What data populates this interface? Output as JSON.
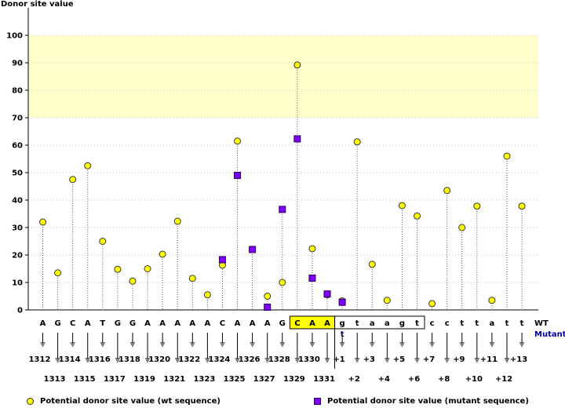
{
  "chart_data": {
    "type": "scatter",
    "ylabel": "Donor site value",
    "ylim": [
      0,
      100
    ],
    "yticks": [
      0,
      10,
      20,
      30,
      40,
      50,
      60,
      70,
      80,
      90,
      100
    ],
    "highlight_band": [
      70,
      100
    ],
    "bases_wt": [
      "A",
      "G",
      "C",
      "A",
      "T",
      "G",
      "G",
      "A",
      "A",
      "A",
      "A",
      "A",
      "C",
      "A",
      "A",
      "A",
      "G",
      "C",
      "A",
      "A",
      "g",
      "t",
      "a",
      "a",
      "g",
      "t",
      "c",
      "c",
      "t",
      "t",
      "a",
      "t",
      "t"
    ],
    "bases_mutant": [
      "",
      "",
      "",
      "",
      "",
      "",
      "",
      "",
      "",
      "",
      "",
      "",
      "",
      "",
      "",
      "",
      "",
      "",
      "",
      "",
      "t",
      "",
      "",
      "",
      "",
      "",
      "",
      "",
      "",
      "",
      "",
      "",
      ""
    ],
    "positions": [
      "1312",
      "1313",
      "1314",
      "1315",
      "1316",
      "1317",
      "1318",
      "1319",
      "1320",
      "1321",
      "1322",
      "1323",
      "1324",
      "1325",
      "1326",
      "1327",
      "1328",
      "1329",
      "1330",
      "1331",
      "+1",
      "+2",
      "+3",
      "+4",
      "+5",
      "+6",
      "+7",
      "+8",
      "+9",
      "+10",
      "+11",
      "+12",
      "+13"
    ],
    "row_labels": {
      "wt": "WT",
      "mutant": "Mutant"
    },
    "series": [
      {
        "name": "Potential donor site value (wt sequence)",
        "marker": "circle",
        "color": "#ffff00",
        "values": [
          32,
          13.5,
          47.5,
          52.5,
          25,
          14.8,
          10.5,
          15,
          20.3,
          32.3,
          11.5,
          5.5,
          16.3,
          61.5,
          22,
          5,
          10,
          89.2,
          22.3,
          5.5,
          3.3,
          61.2,
          16.6,
          3.5,
          38,
          34.2,
          2.3,
          43.5,
          30,
          37.8,
          3.5,
          56,
          37.8
        ]
      },
      {
        "name": "Potential donor site value (mutant sequence)",
        "marker": "square",
        "color": "#8000ff",
        "values": [
          null,
          null,
          null,
          null,
          null,
          null,
          null,
          null,
          null,
          null,
          null,
          null,
          18.3,
          49,
          22,
          1,
          36.6,
          62.3,
          11.6,
          5.8,
          2.8,
          null,
          null,
          null,
          null,
          null,
          null,
          null,
          null,
          null,
          null,
          null,
          null
        ]
      }
    ],
    "boxed_exon_indices": [
      17,
      18,
      19
    ],
    "boxed_intron_indices": [
      20,
      25
    ]
  },
  "colors": {
    "band": "#ffffcc",
    "wt_marker": "#ffff00",
    "mutant_marker": "#8000ff",
    "exon_box": "#ffff00",
    "mutant_text": "#0000a0"
  }
}
